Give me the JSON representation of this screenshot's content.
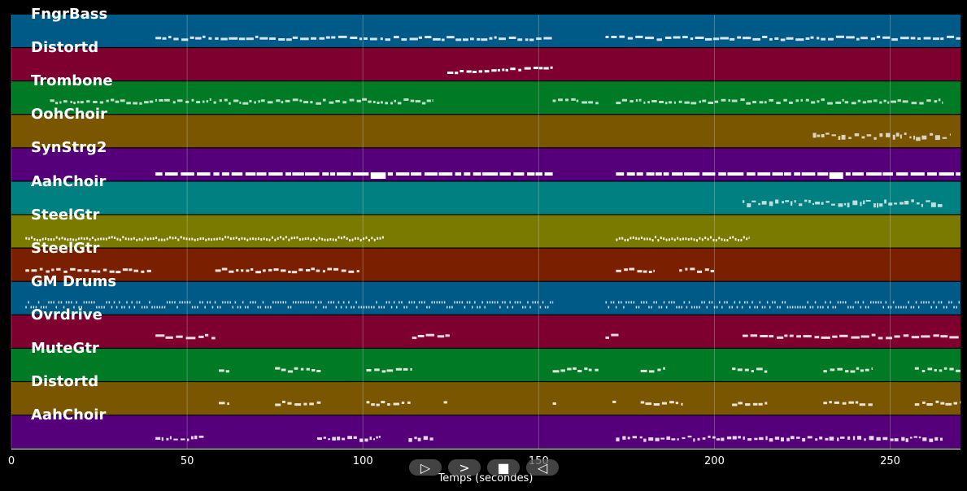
{
  "chart_data": {
    "type": "piano-roll",
    "xlabel": "Temps (secondes)",
    "xlim": [
      0,
      270
    ],
    "x_ticks": [
      0,
      50,
      100,
      150,
      200,
      250
    ],
    "tracks": [
      {
        "name": "FngrBass",
        "color": "#005a87",
        "segments": [
          [
            41,
            154
          ],
          [
            169,
            270
          ]
        ],
        "pattern": "dense-bass"
      },
      {
        "name": "Distortd",
        "color": "#7e002e",
        "segments": [
          [
            124,
            154
          ]
        ],
        "pattern": "rising"
      },
      {
        "name": "Trombone",
        "color": "#007a24",
        "segments": [
          [
            11,
            120
          ],
          [
            154,
            167
          ],
          [
            172,
            265
          ]
        ],
        "pattern": "sparse"
      },
      {
        "name": "OohChoir",
        "color": "#7a5600",
        "segments": [
          [
            228,
            267
          ]
        ],
        "pattern": "blocks"
      },
      {
        "name": "SynStrg2",
        "color": "#55007a",
        "segments": [
          [
            41,
            154
          ],
          [
            172,
            270
          ]
        ],
        "pattern": "long"
      },
      {
        "name": "AahChoir",
        "color": "#008080",
        "segments": [
          [
            208,
            265
          ]
        ],
        "pattern": "blocks"
      },
      {
        "name": "SteelGtr",
        "color": "#7a7a00",
        "segments": [
          [
            4,
            106
          ],
          [
            172,
            210
          ]
        ],
        "pattern": "arp"
      },
      {
        "name": "SteelGtr",
        "color": "#7a2000",
        "segments": [
          [
            4,
            40
          ],
          [
            58,
            99
          ],
          [
            172,
            183
          ],
          [
            190,
            200
          ]
        ],
        "pattern": "arp2"
      },
      {
        "name": "GM Drums",
        "color": "#005a87",
        "segments": [
          [
            4,
            154
          ],
          [
            169,
            270
          ]
        ],
        "pattern": "drums"
      },
      {
        "name": "Ovrdrive",
        "color": "#7e002e",
        "segments": [
          [
            41,
            58
          ],
          [
            114,
            125
          ],
          [
            169,
            173
          ],
          [
            208,
            270
          ]
        ],
        "pattern": "lead"
      },
      {
        "name": "MuteGtr",
        "color": "#007a24",
        "segments": [
          [
            59,
            62
          ],
          [
            75,
            88
          ],
          [
            101,
            114
          ],
          [
            154,
            167
          ],
          [
            179,
            186
          ],
          [
            205,
            215
          ],
          [
            231,
            245
          ],
          [
            257,
            270
          ]
        ],
        "pattern": "phrases"
      },
      {
        "name": "Distortd",
        "color": "#7a5600",
        "segments": [
          [
            59,
            62
          ],
          [
            75,
            88
          ],
          [
            101,
            114
          ],
          [
            123,
            124
          ],
          [
            154,
            155
          ],
          [
            171,
            172
          ],
          [
            179,
            191
          ],
          [
            205,
            215
          ],
          [
            231,
            245
          ],
          [
            257,
            270
          ]
        ],
        "pattern": "phrases"
      },
      {
        "name": "AahChoir",
        "color": "#55007a",
        "segments": [
          [
            41,
            55
          ],
          [
            87,
            105
          ],
          [
            113,
            120
          ],
          [
            172,
            265
          ]
        ],
        "pattern": "blocks2"
      }
    ]
  },
  "controls": {
    "play_label": "▷",
    "next_label": ">",
    "stop_label": "■",
    "back_label": "◁"
  }
}
